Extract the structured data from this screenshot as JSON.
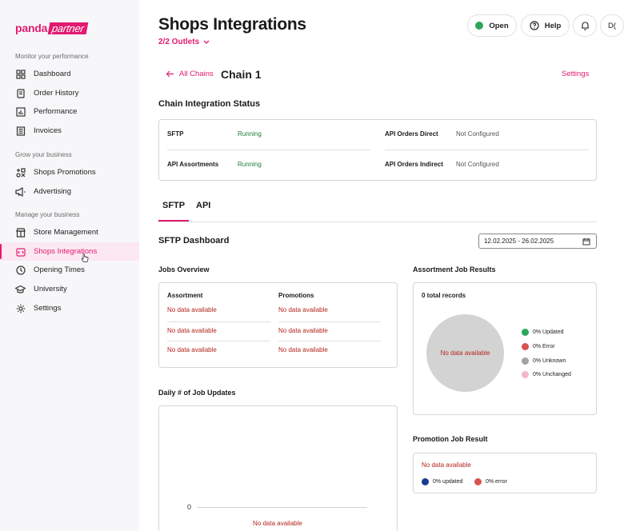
{
  "brand": {
    "panda": "panda",
    "partner": "partner"
  },
  "sidebar": {
    "sections": [
      {
        "label": "Monitor your performance"
      },
      {
        "label": "Grow your business"
      },
      {
        "label": "Manage your business"
      }
    ],
    "items": [
      {
        "label": "Dashboard",
        "icon": "grid-icon"
      },
      {
        "label": "Order History",
        "icon": "receipt-icon"
      },
      {
        "label": "Performance",
        "icon": "chart-icon"
      },
      {
        "label": "Invoices",
        "icon": "invoice-icon"
      },
      {
        "label": "Shops Promotions",
        "icon": "promo-icon"
      },
      {
        "label": "Advertising",
        "icon": "megaphone-icon"
      },
      {
        "label": "Store Management",
        "icon": "store-icon"
      },
      {
        "label": "Shops Integrations",
        "icon": "integration-icon"
      },
      {
        "label": "Opening Times",
        "icon": "clock-icon"
      },
      {
        "label": "University",
        "icon": "graduation-cap-icon"
      },
      {
        "label": "Settings",
        "icon": "gear-icon"
      }
    ]
  },
  "header": {
    "title": "Shops Integrations",
    "outlets": "2/2 Outlets",
    "status": "Open",
    "help": "Help",
    "avatar": "D("
  },
  "chain": {
    "back_label": "All Chains",
    "title": "Chain 1",
    "settings_label": "Settings"
  },
  "integration_status": {
    "title": "Chain Integration Status",
    "rows": [
      {
        "label": "SFTP",
        "value": "Running"
      },
      {
        "label": "API Assortments",
        "value": "Running"
      },
      {
        "label": "API Orders Direct",
        "value": "Not Configured"
      },
      {
        "label": "API Orders Indirect",
        "value": "Not Configured"
      }
    ]
  },
  "tabs": [
    {
      "label": "SFTP"
    },
    {
      "label": "API"
    }
  ],
  "dashboard": {
    "title": "SFTP Dashboard",
    "date_range": "12.02.2025 - 26.02.2025"
  },
  "jobs_overview": {
    "title": "Jobs Overview",
    "assortment_header": "Assortment",
    "promotions_header": "Promotions",
    "no_data": "No data available"
  },
  "assortment_results": {
    "title": "Assortment Job Results",
    "total": "0 total records",
    "no_data": "No data available",
    "legend": [
      {
        "label": "0% Updated",
        "color": "#2ea65a"
      },
      {
        "label": "0% Error",
        "color": "#d9534f"
      },
      {
        "label": "0% Unknown",
        "color": "#a3a3a3"
      },
      {
        "label": "0% Unchanged",
        "color": "#f4b4cf"
      }
    ]
  },
  "daily_updates": {
    "title": "Daily # of Job Updates",
    "zero_tick": "0",
    "no_data": "No data available"
  },
  "promotion_result": {
    "title": "Promotion Job Result",
    "no_data": "No data available",
    "legend": [
      {
        "label": "0% updated",
        "color": "#1a3a8f"
      },
      {
        "label": "0% error",
        "color": "#d9534f"
      }
    ]
  }
}
